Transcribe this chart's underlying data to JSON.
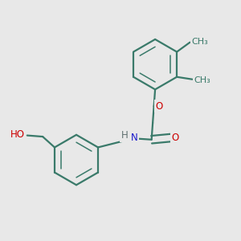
{
  "bg_color": "#e8e8e8",
  "bond_color": "#3a7a6a",
  "bond_lw": 1.6,
  "inner_lw": 1.1,
  "atom_colors": {
    "O": "#cc0000",
    "N": "#1a1acc",
    "H": "#607070",
    "C": "#3a7a6a"
  },
  "font_size": 8.5,
  "ring_r": 0.105,
  "figsize": [
    3.0,
    3.0
  ],
  "dpi": 100,
  "xlim": [
    0.0,
    1.0
  ],
  "ylim": [
    0.0,
    1.0
  ]
}
